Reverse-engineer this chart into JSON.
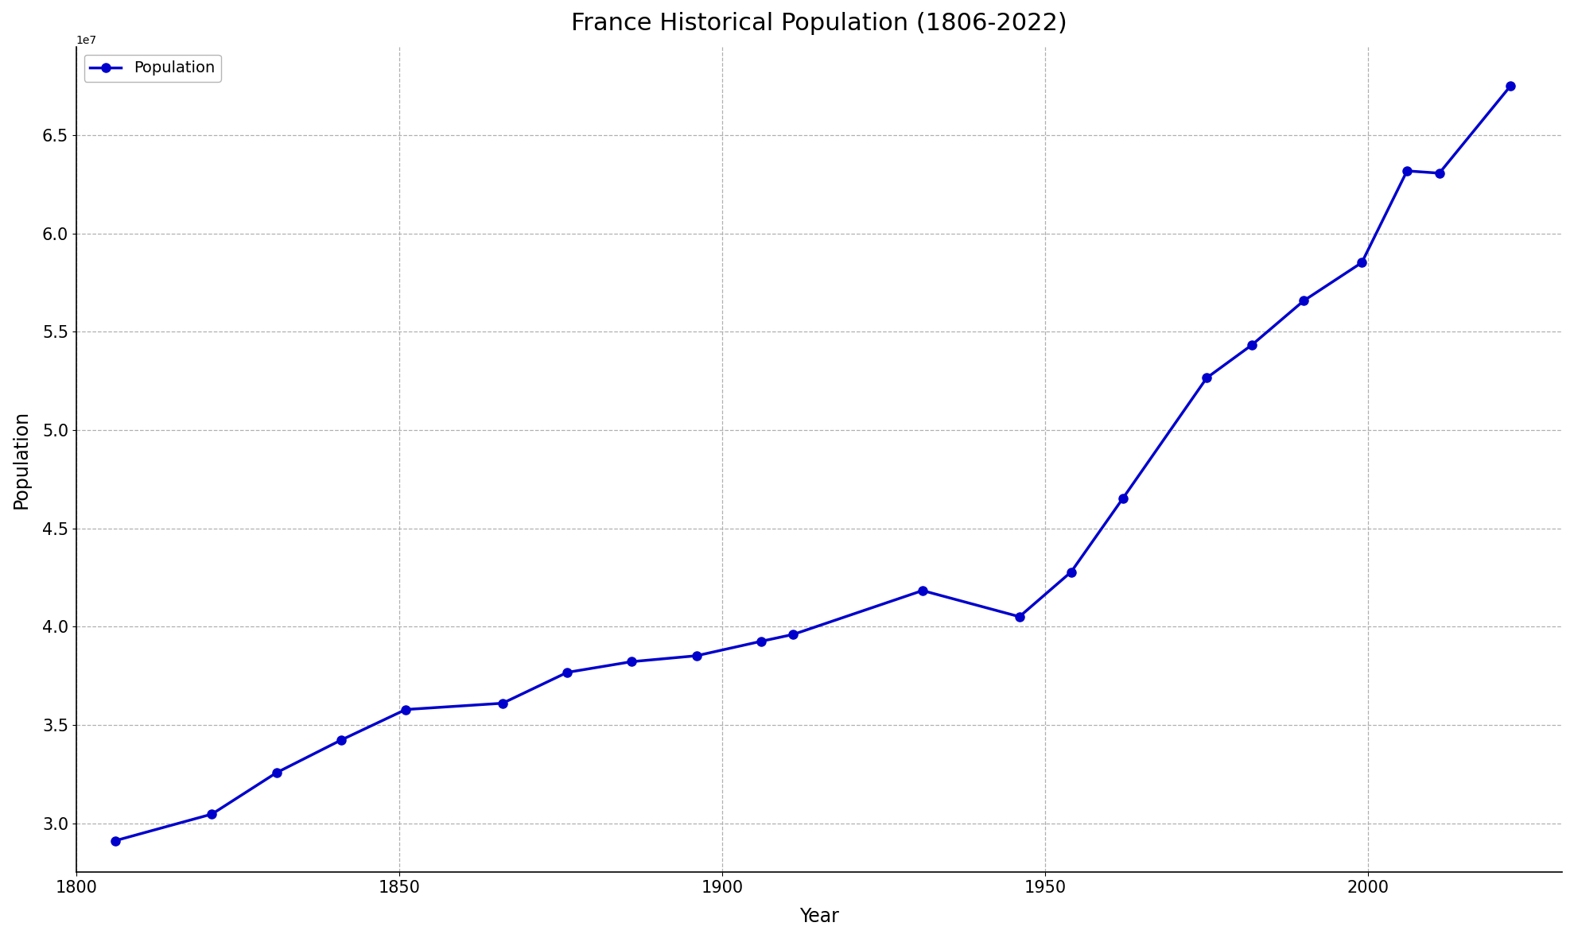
{
  "years": [
    1806,
    1821,
    1831,
    1841,
    1851,
    1866,
    1876,
    1886,
    1896,
    1906,
    1911,
    1931,
    1946,
    1954,
    1962,
    1975,
    1982,
    1990,
    1999,
    2006,
    2011,
    2022
  ],
  "population": [
    29107000,
    30461875,
    32569000,
    34230000,
    35783000,
    36102921,
    37672048,
    38218903,
    38517975,
    39252245,
    39604992,
    41835000,
    40506639,
    42781000,
    46520000,
    52655802,
    54334871,
    56577000,
    58520688,
    63186000,
    63070000,
    67500000
  ],
  "line_color": "#0000CC",
  "marker_color": "#0000CC",
  "title": "France Historical Population (1806-2022)",
  "xlabel": "Year",
  "ylabel": "Population",
  "legend_label": "Population",
  "background_color": "#ffffff",
  "grid_color": "#b0b0b0",
  "title_fontsize": 22,
  "label_fontsize": 17,
  "tick_fontsize": 15,
  "legend_fontsize": 14,
  "line_width": 2.5,
  "marker_size": 8,
  "xlim": [
    1800,
    2030
  ],
  "ylim": [
    27500000,
    69500000
  ],
  "yticks": [
    30000000,
    35000000,
    40000000,
    45000000,
    50000000,
    55000000,
    60000000,
    65000000
  ],
  "xticks": [
    1800,
    1850,
    1900,
    1950,
    2000
  ]
}
